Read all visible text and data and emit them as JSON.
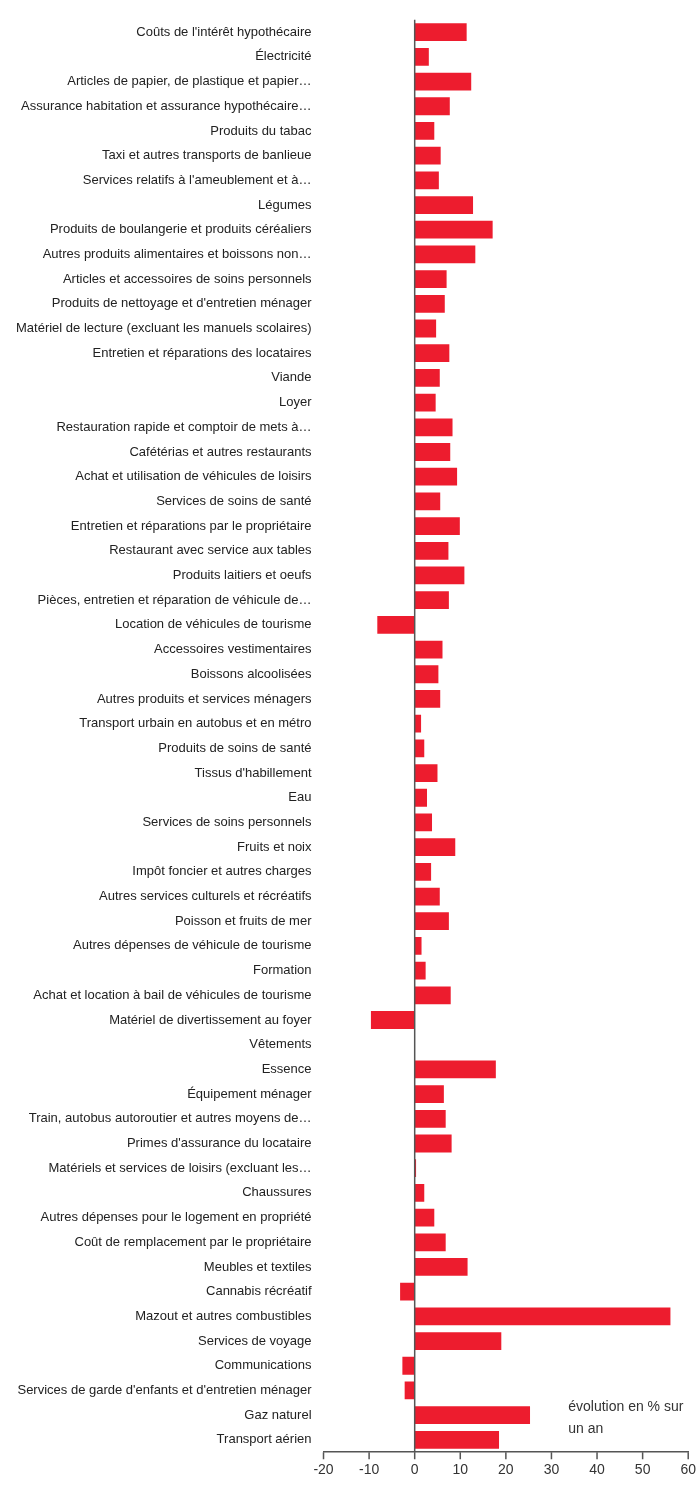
{
  "chart_data": {
    "type": "bar",
    "orientation": "horizontal",
    "categories": [
      "Coûts de l'intérêt hypothécaire",
      "Électricité",
      "Articles de papier, de plastique et papier…",
      "Assurance habitation et assurance hypothécaire…",
      "Produits du tabac",
      "Taxi et autres transports de banlieue",
      "Services relatifs à l'ameublement et à…",
      "Légumes",
      "Produits de boulangerie et produits céréaliers",
      "Autres produits alimentaires et boissons non…",
      "Articles et accessoires de soins personnels",
      "Produits de nettoyage et d'entretien ménager",
      "Matériel de lecture (excluant les manuels scolaires)",
      "Entretien et réparations des locataires",
      "Viande",
      "Loyer",
      "Restauration rapide et comptoir de mets à…",
      "Cafétérias et autres restaurants",
      "Achat et utilisation de véhicules de loisirs",
      "Services de soins de santé",
      "Entretien et réparations par le propriétaire",
      "Restaurant avec service aux tables",
      "Produits laitiers et oeufs",
      "Pièces, entretien et réparation de véhicule de…",
      "Location de véhicules de tourisme",
      "Accessoires vestimentaires",
      "Boissons alcoolisées",
      "Autres produits et services ménagers",
      "Transport urbain en autobus et en métro",
      "Produits de soins de santé",
      "Tissus d'habillement",
      "Eau",
      "Services de soins personnels",
      "Fruits et noix",
      "Impôt foncier et autres charges",
      "Autres services culturels et récréatifs",
      "Poisson et fruits de mer",
      "Autres dépenses de véhicule de tourisme",
      "Formation",
      "Achat et location à bail de véhicules de tourisme",
      "Matériel de divertissement au foyer",
      "Vêtements",
      "Essence",
      "Équipement ménager",
      "Train, autobus autoroutier et autres moyens de…",
      "Primes d'assurance du locataire",
      "Matériels et services de loisirs (excluant les…",
      "Chaussures",
      "Autres dépenses pour le logement en propriété",
      "Coût de remplacement par le propriétaire",
      "Meubles et textiles",
      "Cannabis récréatif",
      "Mazout et autres combustibles",
      "Services de voyage",
      "Communications",
      "Services de garde d'enfants et d'entretien ménager",
      "Gaz naturel",
      "Transport aérien"
    ],
    "values": [
      11.4,
      3.1,
      12.4,
      7.7,
      4.3,
      5.7,
      5.3,
      12.8,
      17.1,
      13.3,
      7.0,
      6.6,
      4.7,
      7.6,
      5.5,
      4.6,
      8.3,
      7.8,
      9.3,
      5.6,
      9.9,
      7.4,
      10.9,
      7.5,
      -8.2,
      6.1,
      5.2,
      5.6,
      1.4,
      2.1,
      5.0,
      2.7,
      3.8,
      8.9,
      3.6,
      5.5,
      7.5,
      1.5,
      2.4,
      7.9,
      -9.6,
      0,
      17.8,
      6.4,
      6.8,
      8.1,
      0.3,
      2.1,
      4.3,
      6.8,
      11.6,
      -3.2,
      56.1,
      19.0,
      -2.7,
      -2.2,
      25.3,
      18.5
    ],
    "color": "#ed1c2e",
    "xlim": [
      -20,
      60
    ],
    "xticks": [
      -20,
      -10,
      0,
      10,
      20,
      30,
      40,
      50,
      60
    ],
    "grid": false,
    "legend": false,
    "ref_lines": [
      {
        "axis": "x",
        "value": 0,
        "color": "#555555"
      }
    ],
    "annotations": [
      "évolution en % sur un an"
    ]
  }
}
